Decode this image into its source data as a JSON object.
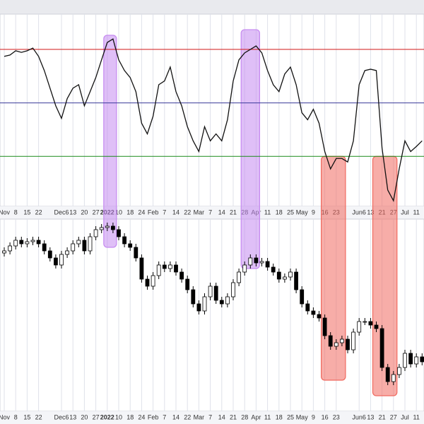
{
  "chart_data": [
    {
      "type": "line",
      "color": "#111111",
      "categories": [
        "Nov",
        null,
        "8",
        null,
        "15",
        null,
        "22",
        null,
        null,
        null,
        "Dec6",
        null,
        "13",
        null,
        "20",
        null,
        "27",
        null,
        "2022",
        null,
        "10",
        null,
        "18",
        null,
        "24",
        null,
        "Feb",
        null,
        "7",
        null,
        "14",
        null,
        "22",
        null,
        "Mar",
        null,
        "7",
        null,
        "14",
        null,
        "21",
        null,
        "28",
        null,
        "Apr",
        null,
        "11",
        null,
        "18",
        null,
        "25",
        null,
        "May",
        null,
        "9",
        null,
        "16",
        null,
        "23",
        null,
        null,
        null,
        "Jun6",
        null,
        "13",
        null,
        "21",
        null,
        "27",
        null,
        "Jul",
        null,
        "11",
        null
      ],
      "values": [
        67.4,
        67.9,
        69.5,
        68.9,
        69.5,
        70.5,
        67.4,
        62.1,
        55.5,
        48.9,
        44.2,
        51.6,
        55.5,
        56.8,
        48.9,
        54.2,
        59.5,
        66.1,
        72.6,
        73.9,
        66.1,
        62.1,
        59.5,
        54.2,
        42.4,
        38.4,
        45.0,
        56.8,
        58.2,
        63.4,
        54.2,
        48.9,
        41.1,
        35.8,
        31.8,
        41.1,
        35.8,
        38.4,
        35.8,
        43.7,
        58.2,
        66.1,
        68.7,
        70.0,
        71.3,
        68.7,
        62.1,
        56.8,
        54.2,
        60.8,
        63.4,
        56.8,
        46.3,
        43.7,
        47.6,
        42.4,
        31.8,
        25.3,
        29.2,
        29.2,
        27.9,
        35.8,
        56.8,
        62.1,
        62.6,
        62.1,
        33.2,
        17.4,
        13.4,
        25.3,
        35.8,
        31.8,
        33.7,
        35.8
      ],
      "ylim": [
        11.3,
        83.2
      ],
      "reference_lines": [
        {
          "value": 70,
          "color": "#d01818"
        },
        {
          "value": 50,
          "color": "#3a3a9a"
        },
        {
          "value": 30,
          "color": "#1a8a1a"
        }
      ]
    },
    {
      "type": "candlestick",
      "up_color": "#ffffff",
      "down_color": "#000000",
      "categories": [
        "Nov",
        null,
        "8",
        null,
        "15",
        null,
        "22",
        null,
        null,
        null,
        "Dec6",
        null,
        "13",
        null,
        "20",
        null,
        "27",
        null,
        "2022",
        null,
        "10",
        null,
        "18",
        null,
        "24",
        null,
        "Feb",
        null,
        "7",
        null,
        "14",
        null,
        "22",
        null,
        "Mar",
        null,
        "7",
        null,
        "14",
        null,
        "21",
        null,
        "28",
        null,
        "Apr",
        null,
        "11",
        null,
        "18",
        null,
        "25",
        null,
        "May",
        null,
        "9",
        null,
        "16",
        null,
        "23",
        null,
        null,
        null,
        "Jun6",
        null,
        "13",
        null,
        "21",
        null,
        "27",
        null,
        "Jul",
        null,
        "11",
        null
      ],
      "open": [
        4600,
        4615,
        4650,
        4690,
        4665,
        4680,
        4690,
        4665,
        4615,
        4565,
        4515,
        4590,
        4615,
        4665,
        4690,
        4615,
        4715,
        4765,
        4780,
        4790,
        4765,
        4715,
        4665,
        4640,
        4565,
        4415,
        4365,
        4440,
        4515,
        4490,
        4515,
        4465,
        4415,
        4340,
        4240,
        4190,
        4290,
        4365,
        4265,
        4240,
        4290,
        4390,
        4465,
        4515,
        4565,
        4530,
        4540,
        4500,
        4465,
        4415,
        4430,
        4465,
        4340,
        4240,
        4190,
        4165,
        4140,
        4015,
        3940,
        3965,
        3990,
        3915,
        4040,
        4115,
        4115,
        4090,
        4065,
        3790,
        3690,
        3740,
        3790,
        3890,
        3815,
        3865
      ],
      "high": [
        4640,
        4675,
        4715,
        4715,
        4705,
        4715,
        4715,
        4690,
        4640,
        4590,
        4615,
        4640,
        4690,
        4715,
        4715,
        4740,
        4790,
        4805,
        4815,
        4815,
        4790,
        4740,
        4690,
        4665,
        4590,
        4440,
        4465,
        4540,
        4540,
        4540,
        4540,
        4490,
        4440,
        4365,
        4265,
        4315,
        4390,
        4390,
        4290,
        4315,
        4415,
        4490,
        4540,
        4590,
        4590,
        4565,
        4565,
        4525,
        4490,
        4455,
        4490,
        4490,
        4365,
        4265,
        4215,
        4190,
        4165,
        4040,
        3990,
        4015,
        4015,
        4065,
        4140,
        4140,
        4140,
        4115,
        4090,
        3815,
        3765,
        3815,
        3915,
        3915,
        3890,
        3890
      ],
      "low": [
        4575,
        4590,
        4625,
        4640,
        4640,
        4655,
        4640,
        4590,
        4540,
        4490,
        4490,
        4565,
        4590,
        4640,
        4590,
        4590,
        4690,
        4740,
        4755,
        4740,
        4690,
        4640,
        4615,
        4540,
        4390,
        4340,
        4340,
        4415,
        4465,
        4465,
        4440,
        4390,
        4315,
        4215,
        4165,
        4165,
        4265,
        4240,
        4215,
        4215,
        4265,
        4365,
        4440,
        4490,
        4505,
        4505,
        4475,
        4440,
        4390,
        4390,
        4405,
        4315,
        4215,
        4165,
        4140,
        4115,
        3990,
        3915,
        3915,
        3940,
        3890,
        3890,
        4015,
        4090,
        4065,
        4040,
        3765,
        3665,
        3665,
        3715,
        3765,
        3790,
        3790,
        3805
      ],
      "close": [
        4615,
        4650,
        4690,
        4665,
        4680,
        4690,
        4665,
        4615,
        4565,
        4515,
        4590,
        4615,
        4665,
        4690,
        4615,
        4715,
        4765,
        4780,
        4790,
        4765,
        4715,
        4665,
        4640,
        4565,
        4415,
        4365,
        4440,
        4515,
        4490,
        4515,
        4465,
        4415,
        4340,
        4240,
        4190,
        4290,
        4365,
        4265,
        4240,
        4290,
        4390,
        4465,
        4515,
        4565,
        4530,
        4540,
        4500,
        4465,
        4415,
        4430,
        4465,
        4340,
        4240,
        4190,
        4165,
        4140,
        4015,
        3940,
        3965,
        3990,
        3915,
        4040,
        4115,
        4115,
        4090,
        4065,
        3790,
        3690,
        3740,
        3790,
        3890,
        3815,
        3865,
        3830
      ],
      "ylim": [
        3480,
        4840
      ]
    }
  ],
  "highlights": [
    {
      "from": 18,
      "to": 19,
      "top": 75.3,
      "bottom": 4640,
      "color": "#c58af0"
    },
    {
      "from": 42,
      "to": 44,
      "top": 77.4,
      "bottom": 4490,
      "color": "#c58af0"
    },
    {
      "from": 56,
      "to": 59,
      "top": 30,
      "bottom": 3700,
      "color": "#f06a60"
    },
    {
      "from": 65,
      "to": 68,
      "top": 30,
      "bottom": 3590,
      "color": "#f06a60"
    }
  ]
}
